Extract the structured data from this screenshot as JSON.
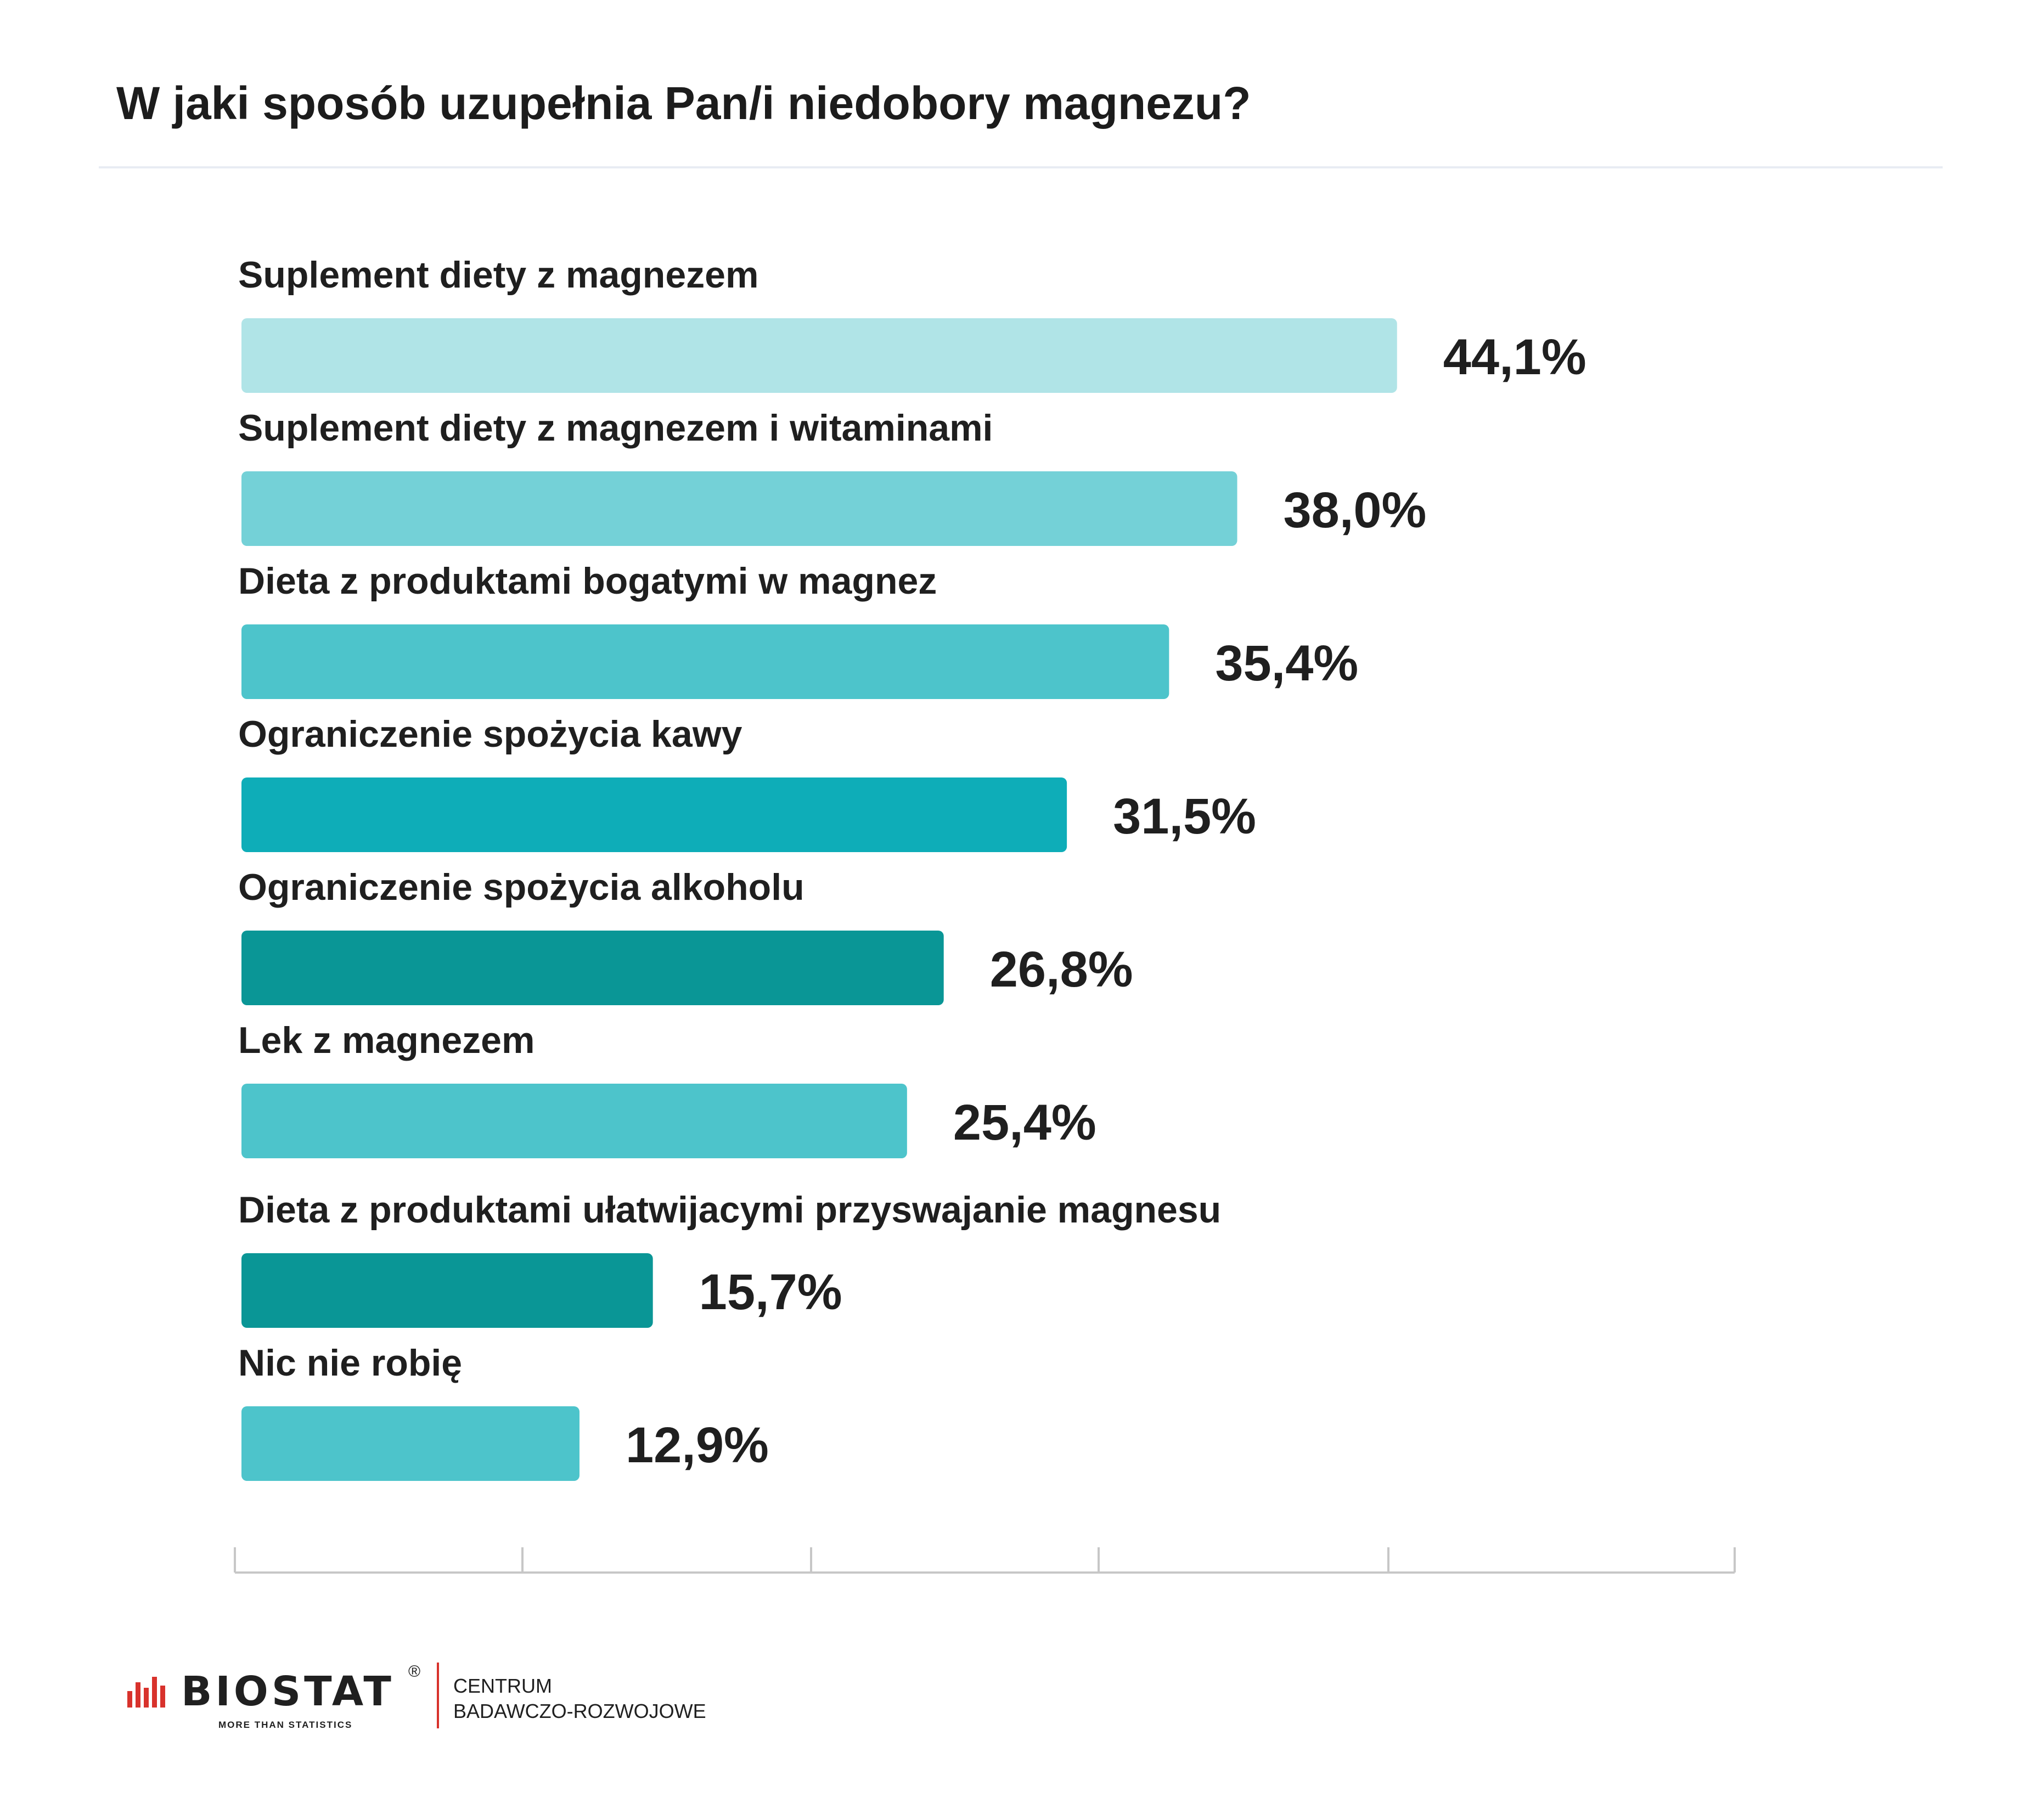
{
  "title": "W jaki sposób uzupełnia Pan/i niedobory magnezu?",
  "chart_data": {
    "type": "bar",
    "orientation": "horizontal",
    "title": "W jaki sposób uzupełnia Pan/i niedobory magnezu?",
    "categories": [
      "Suplement diety z magnezem",
      "Suplement diety z magnezem i witaminami",
      "Dieta z produktami bogatymi w magnez",
      "Ograniczenie spożycia kawy",
      "Ograniczenie spożycia alkoholu",
      "Lek z magnezem",
      "Dieta z produktami ułatwijacymi przyswajanie magnesu",
      "Nic nie robię"
    ],
    "values": [
      44.1,
      38.0,
      35.4,
      31.5,
      26.8,
      25.4,
      15.7,
      12.9
    ],
    "value_labels": [
      "44,1%",
      "38,0%",
      "35,4%",
      "31,5%",
      "26,8%",
      "25,4%",
      "15,7%",
      "12,9%"
    ],
    "colors": [
      "#b0e4e7",
      "#74d1d7",
      "#4dc4cb",
      "#0eadb8",
      "#0a9696",
      "#4dc4cb",
      "#0a9696",
      "#4dc4cb"
    ],
    "xlim": [
      0,
      57
    ],
    "grid": false,
    "legend": "none"
  },
  "footer": {
    "brand": "BIOSTAT",
    "registered": "®",
    "tagline": "MORE THAN STATISTICS",
    "centre_line1": "CENTRUM",
    "centre_line2": "BADAWCZO-ROZWOJOWE",
    "accent_color": "#d8322c"
  }
}
